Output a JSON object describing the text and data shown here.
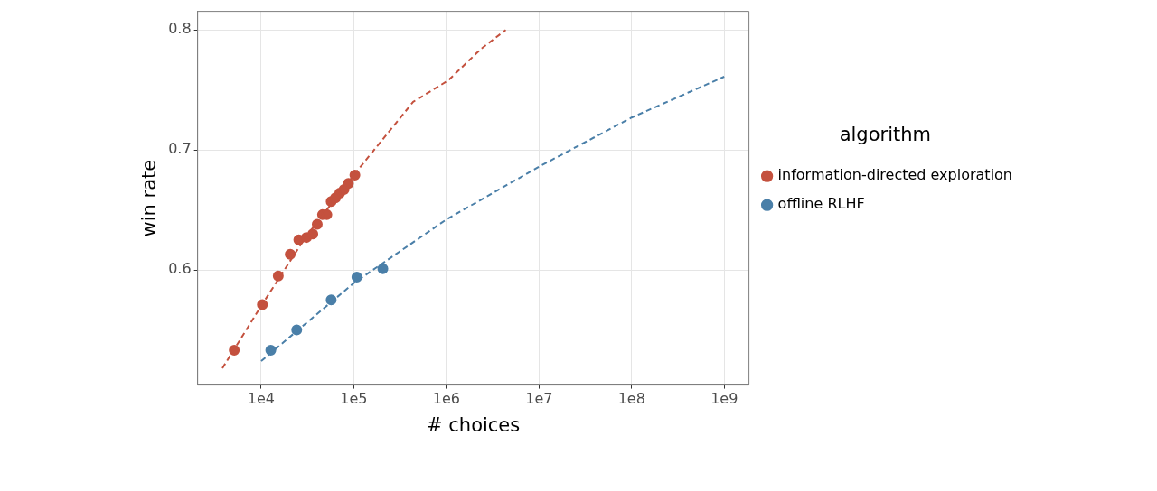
{
  "chart_data": {
    "type": "scatter",
    "xlabel": "# choices",
    "ylabel": "win rate",
    "legend_title": "algorithm",
    "legend": "right",
    "grid": true,
    "marker": "circle",
    "log": "x",
    "xlim": [
      2060,
      1850000000
    ],
    "xticks": [
      {
        "value": 10000,
        "label": "1e4"
      },
      {
        "value": 100000,
        "label": "1e5"
      },
      {
        "value": 1000000,
        "label": "1e6"
      },
      {
        "value": 10000000,
        "label": "1e7"
      },
      {
        "value": 100000000,
        "label": "1e8"
      },
      {
        "value": 1000000000,
        "label": "1e9"
      }
    ],
    "ylim": [
      0.504,
      0.8155
    ],
    "yticks": [
      0.6,
      0.7,
      0.8
    ],
    "series": [
      {
        "type": "line",
        "line_style": "dashed",
        "marker": "none",
        "color": "#c4513e",
        "x": [
          3810,
          10000,
          30000,
          100000,
          158000,
          437000,
          1050000,
          2350000,
          4370000
        ],
        "values": [
          0.518,
          0.57,
          0.627,
          0.679,
          0.698,
          0.74,
          0.758,
          0.784,
          0.8
        ]
      },
      {
        "type": "line",
        "line_style": "dashed",
        "marker": "none",
        "color": "#4a7fa8",
        "x": [
          10000,
          100000,
          1000000,
          10000000,
          100000000,
          1000000000
        ],
        "values": [
          0.524,
          0.589,
          0.642,
          0.686,
          0.727,
          0.761
        ]
      },
      {
        "name": "information-directed exploration",
        "color": "#c4513e",
        "x": [
          5120,
          10300,
          15300,
          20600,
          25500,
          30800,
          36100,
          40300,
          46000,
          51200,
          57000,
          63400,
          70600,
          78500,
          87500,
          94800,
          102800
        ],
        "values": [
          0.533,
          0.571,
          0.595,
          0.613,
          0.625,
          0.627,
          0.63,
          0.638,
          0.646,
          0.646,
          0.657,
          0.66,
          0.664,
          0.667,
          0.672,
          null,
          0.679
        ]
      },
      {
        "name": "offline RLHF",
        "color": "#4a7fa8",
        "x": [
          12700,
          24200,
          57000,
          108000,
          206000
        ],
        "values": [
          0.533,
          0.55,
          0.575,
          0.594,
          0.601
        ]
      }
    ]
  }
}
